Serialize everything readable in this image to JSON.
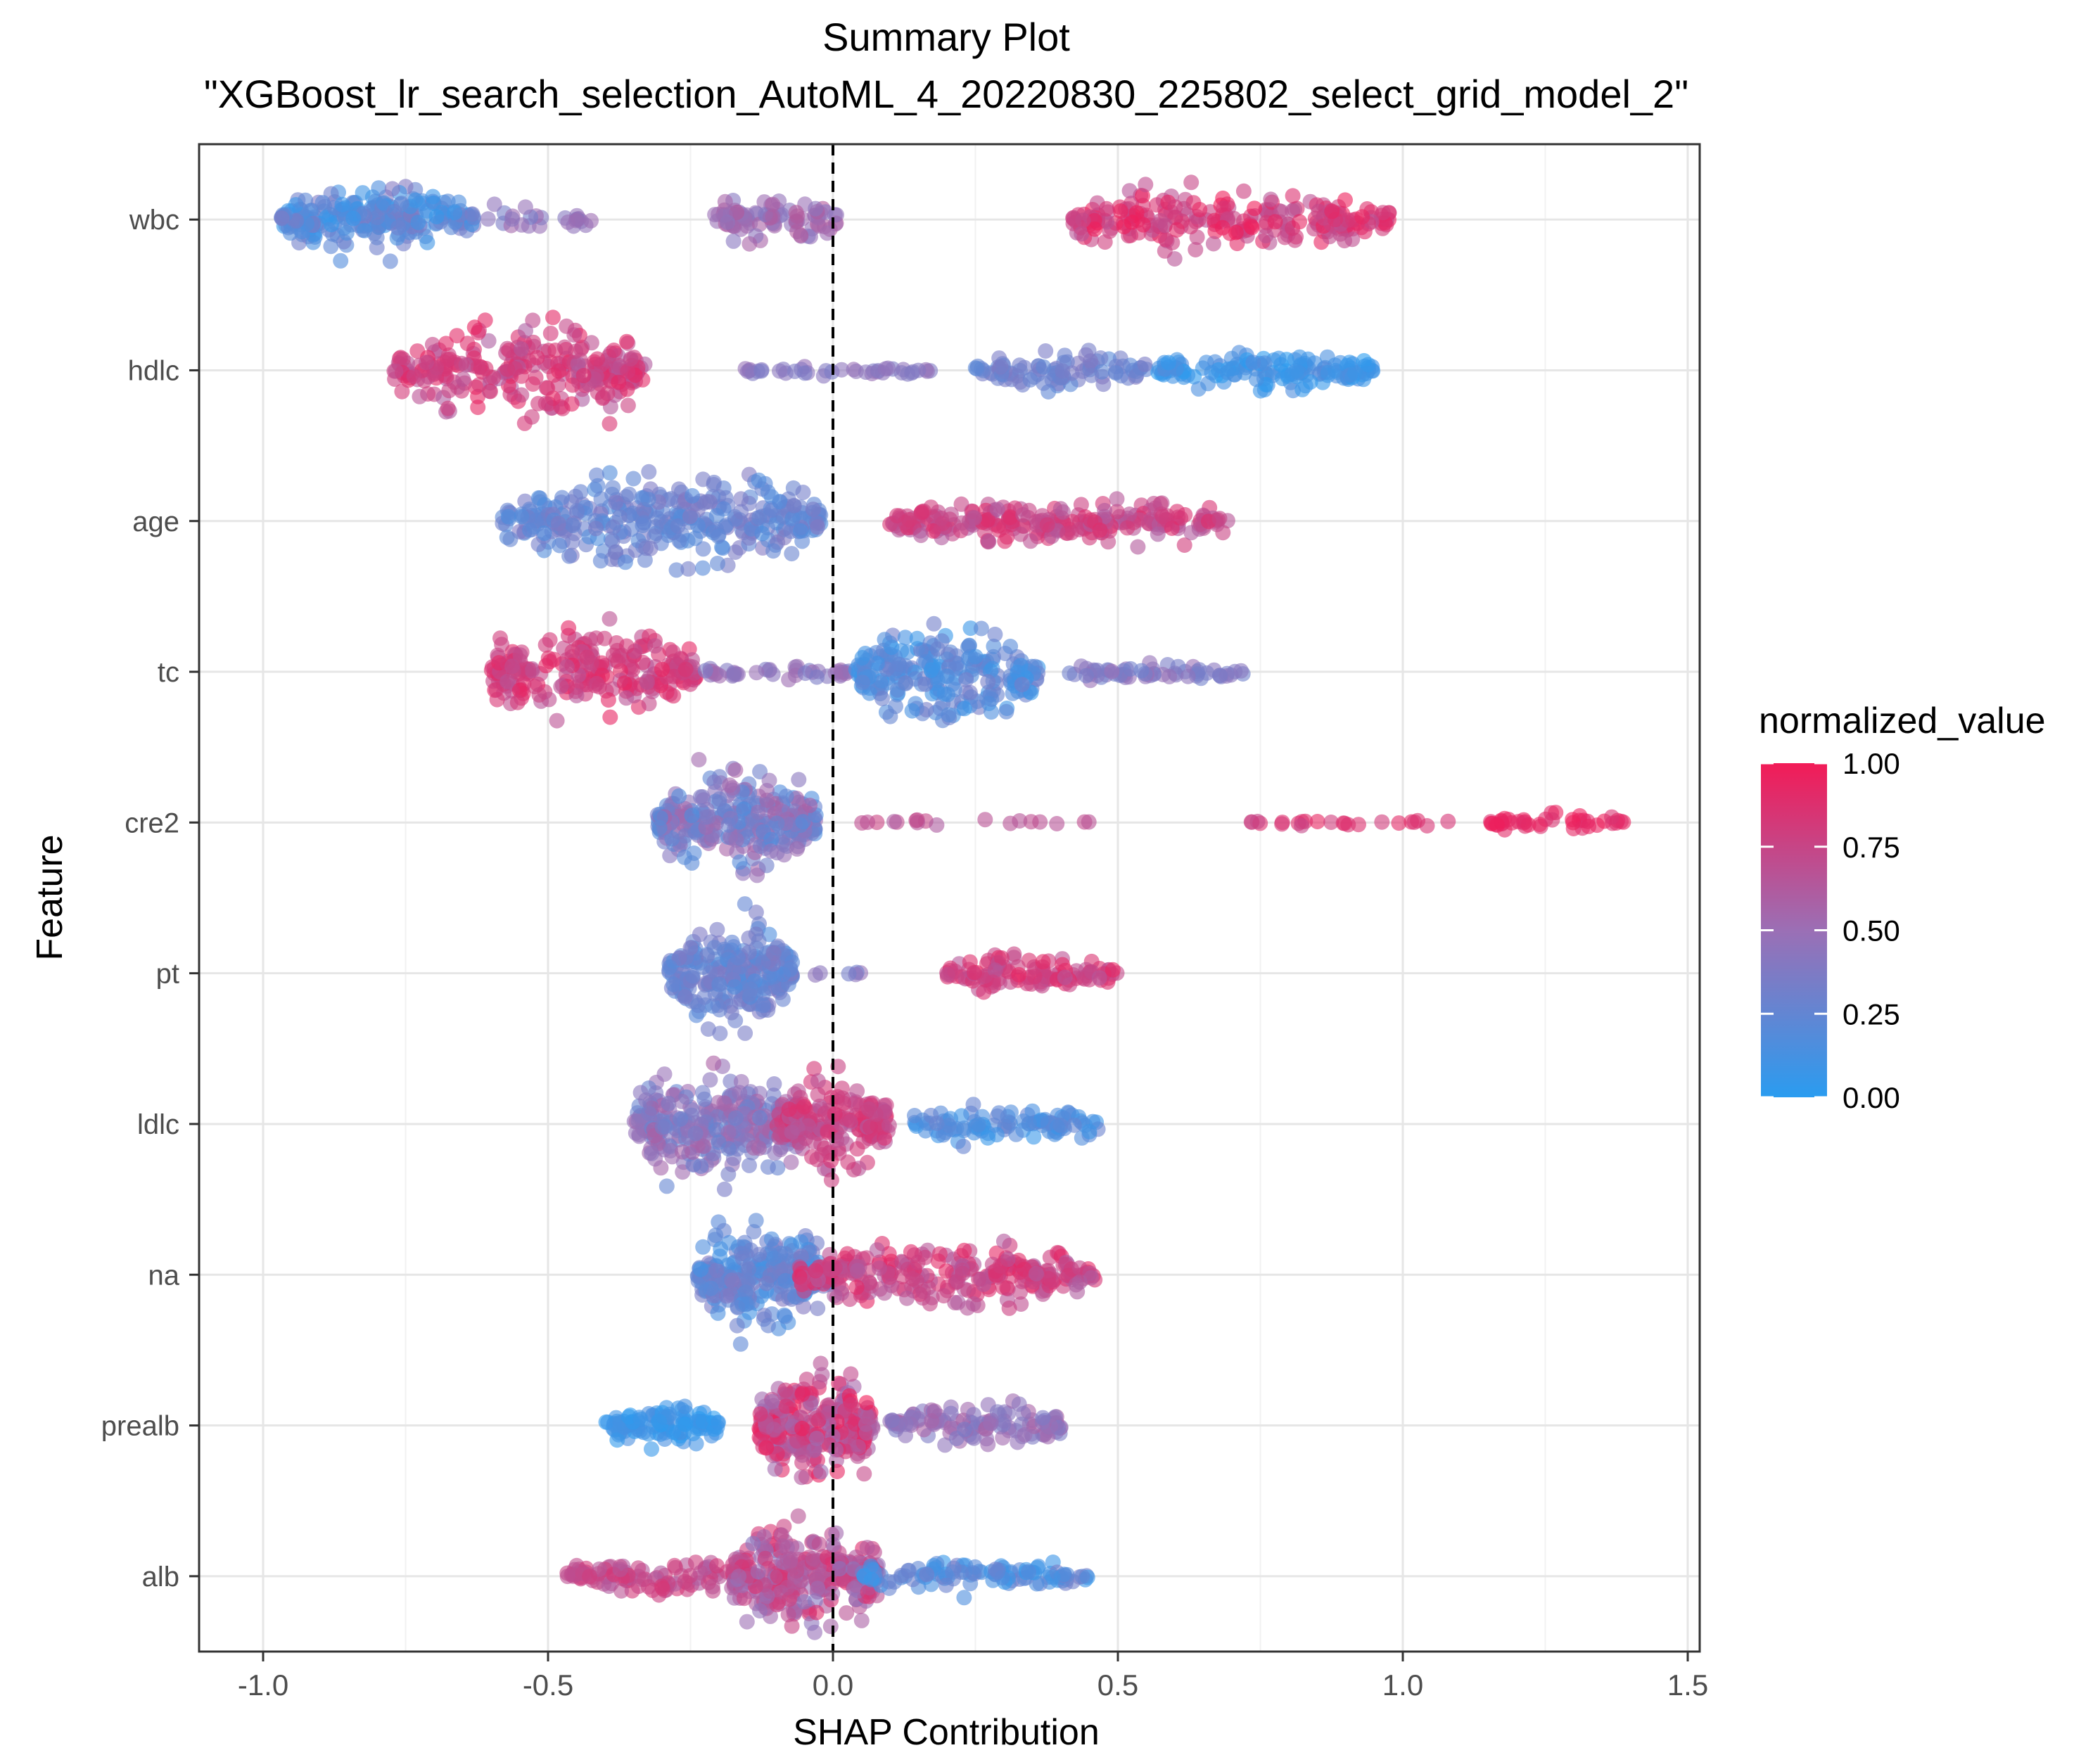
{
  "chart_data": {
    "type": "scatter",
    "subtype": "beeswarm",
    "title": "Summary Plot",
    "subtitle": "\"XGBoost_lr_search_selection_AutoML_4_20220830_225802_select_grid_model_2\"",
    "xlabel": "SHAP Contribution",
    "ylabel": "Feature",
    "xlim": [
      -1.1,
      1.52
    ],
    "xticks": [
      -1.0,
      -0.5,
      0.0,
      0.5,
      1.0,
      1.5
    ],
    "xtick_labels": [
      "-1.0",
      "-0.5",
      "0.0",
      "0.5",
      "1.0",
      "1.5"
    ],
    "grid": true,
    "reference_line": {
      "x": 0,
      "style": "dashed",
      "color": "#000000"
    },
    "legend": {
      "title": "normalized_value",
      "position": "right",
      "range": [
        0,
        1
      ],
      "ticks": [
        1.0,
        0.75,
        0.5,
        0.25,
        0.0
      ],
      "tick_labels": [
        "1.00",
        "0.75",
        "0.50",
        "0.25",
        "0.00"
      ],
      "color_low": "#2a9cf0",
      "color_mid": "#9b6fb5",
      "color_high": "#f21b57"
    },
    "marker_opacity": 0.6,
    "features": [
      {
        "name": "wbc",
        "clusters": [
          {
            "center": -0.8,
            "spread": 0.17,
            "width": 0.5,
            "count": 240,
            "value_lo": 0.05,
            "value_hi": 0.4
          },
          {
            "center": -0.52,
            "spread": 0.1,
            "width": 0.2,
            "count": 25,
            "value_lo": 0.3,
            "value_hi": 0.55
          },
          {
            "center": -0.1,
            "spread": 0.11,
            "width": 0.4,
            "count": 90,
            "value_lo": 0.4,
            "value_hi": 0.65
          },
          {
            "center": 0.7,
            "spread": 0.28,
            "width": 0.5,
            "count": 230,
            "value_lo": 0.65,
            "value_hi": 1.0
          }
        ]
      },
      {
        "name": "hdlc",
        "clusters": [
          {
            "center": -0.55,
            "spread": 0.22,
            "width": 0.75,
            "count": 270,
            "value_lo": 0.6,
            "value_hi": 0.95
          },
          {
            "center": 0.0,
            "spread": 0.18,
            "width": 0.07,
            "count": 40,
            "value_lo": 0.35,
            "value_hi": 0.5
          },
          {
            "center": 0.4,
            "spread": 0.15,
            "width": 0.3,
            "count": 90,
            "value_lo": 0.2,
            "value_hi": 0.4
          },
          {
            "center": 0.76,
            "spread": 0.19,
            "width": 0.28,
            "count": 140,
            "value_lo": 0.0,
            "value_hi": 0.2
          }
        ]
      },
      {
        "name": "age",
        "clusters": [
          {
            "center": -0.3,
            "spread": 0.28,
            "width": 0.75,
            "count": 340,
            "value_lo": 0.15,
            "value_hi": 0.4
          },
          {
            "center": 0.4,
            "spread": 0.3,
            "width": 0.35,
            "count": 240,
            "value_lo": 0.6,
            "value_hi": 0.9
          }
        ]
      },
      {
        "name": "tc",
        "clusters": [
          {
            "center": -0.42,
            "spread": 0.18,
            "width": 0.72,
            "count": 240,
            "value_lo": 0.65,
            "value_hi": 0.95
          },
          {
            "center": -0.1,
            "spread": 0.13,
            "width": 0.14,
            "count": 40,
            "value_lo": 0.35,
            "value_hi": 0.55
          },
          {
            "center": 0.2,
            "spread": 0.16,
            "width": 0.78,
            "count": 230,
            "value_lo": 0.05,
            "value_hi": 0.35
          },
          {
            "center": 0.56,
            "spread": 0.16,
            "width": 0.15,
            "count": 60,
            "value_lo": 0.3,
            "value_hi": 0.5
          }
        ]
      },
      {
        "name": "cre2",
        "clusters": [
          {
            "center": -0.17,
            "spread": 0.14,
            "width": 0.8,
            "count": 280,
            "value_lo": 0.15,
            "value_hi": 0.6
          },
          {
            "center": 0.25,
            "spread": 0.2,
            "width": 0.05,
            "count": 18,
            "value_lo": 0.6,
            "value_hi": 0.8
          },
          {
            "center": 0.95,
            "spread": 0.25,
            "width": 0.05,
            "count": 25,
            "value_lo": 0.7,
            "value_hi": 0.95
          },
          {
            "center": 1.27,
            "spread": 0.12,
            "width": 0.12,
            "count": 40,
            "value_lo": 0.85,
            "value_hi": 1.0
          }
        ]
      },
      {
        "name": "pt",
        "clusters": [
          {
            "center": -0.18,
            "spread": 0.11,
            "width": 0.8,
            "count": 250,
            "value_lo": 0.15,
            "value_hi": 0.4
          },
          {
            "center": 0.0,
            "spread": 0.05,
            "width": 0.05,
            "count": 6,
            "value_lo": 0.3,
            "value_hi": 0.5
          },
          {
            "center": 0.35,
            "spread": 0.15,
            "width": 0.3,
            "count": 110,
            "value_lo": 0.65,
            "value_hi": 0.95
          }
        ]
      },
      {
        "name": "ldlc",
        "clusters": [
          {
            "center": -0.2,
            "spread": 0.15,
            "width": 0.85,
            "count": 300,
            "value_lo": 0.25,
            "value_hi": 0.6
          },
          {
            "center": 0.0,
            "spread": 0.1,
            "width": 0.75,
            "count": 170,
            "value_lo": 0.6,
            "value_hi": 0.9
          },
          {
            "center": 0.3,
            "spread": 0.17,
            "width": 0.3,
            "count": 100,
            "value_lo": 0.05,
            "value_hi": 0.3
          }
        ]
      },
      {
        "name": "na",
        "clusters": [
          {
            "center": -0.12,
            "spread": 0.12,
            "width": 0.85,
            "count": 260,
            "value_lo": 0.1,
            "value_hi": 0.4
          },
          {
            "center": 0.2,
            "spread": 0.26,
            "width": 0.5,
            "count": 280,
            "value_lo": 0.6,
            "value_hi": 0.95
          }
        ]
      },
      {
        "name": "prealb",
        "clusters": [
          {
            "center": -0.3,
            "spread": 0.1,
            "width": 0.3,
            "count": 110,
            "value_lo": 0.0,
            "value_hi": 0.15
          },
          {
            "center": -0.03,
            "spread": 0.1,
            "width": 0.85,
            "count": 270,
            "value_lo": 0.5,
            "value_hi": 1.0
          },
          {
            "center": 0.25,
            "spread": 0.15,
            "width": 0.4,
            "count": 120,
            "value_lo": 0.35,
            "value_hi": 0.6
          }
        ]
      },
      {
        "name": "alb",
        "clusters": [
          {
            "center": -0.3,
            "spread": 0.17,
            "width": 0.3,
            "count": 110,
            "value_lo": 0.6,
            "value_hi": 0.85
          },
          {
            "center": -0.05,
            "spread": 0.13,
            "width": 0.85,
            "count": 280,
            "value_lo": 0.4,
            "value_hi": 0.9
          },
          {
            "center": 0.25,
            "spread": 0.2,
            "width": 0.3,
            "count": 110,
            "value_lo": 0.05,
            "value_hi": 0.35
          }
        ]
      }
    ]
  }
}
